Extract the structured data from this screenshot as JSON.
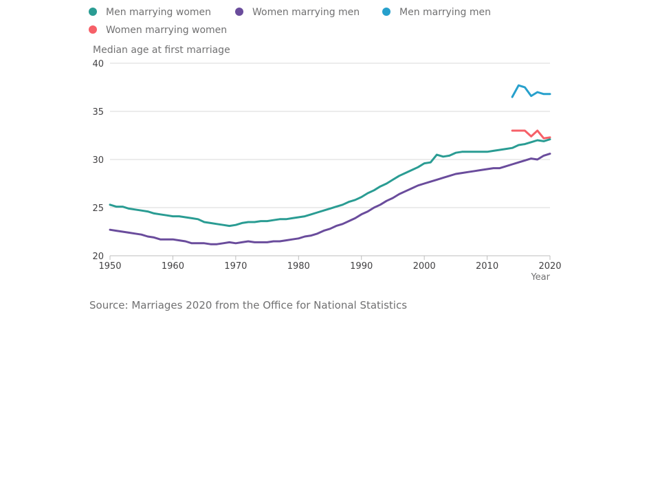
{
  "chart_data": {
    "type": "line",
    "title": "",
    "ylabel": "Median age at first marriage",
    "xlabel": "Year",
    "ylim": [
      20,
      40
    ],
    "xlim": [
      1950,
      2020
    ],
    "yticks": [
      20,
      25,
      30,
      35,
      40
    ],
    "xticks": [
      1950,
      1960,
      1970,
      1980,
      1990,
      2000,
      2010,
      2020
    ],
    "grid": true,
    "legend_position": "top",
    "series": [
      {
        "name": "Men marrying women",
        "color": "#2a9c93",
        "x": [
          1950,
          1951,
          1952,
          1953,
          1954,
          1955,
          1956,
          1957,
          1958,
          1959,
          1960,
          1961,
          1962,
          1963,
          1964,
          1965,
          1966,
          1967,
          1968,
          1969,
          1970,
          1971,
          1972,
          1973,
          1974,
          1975,
          1976,
          1977,
          1978,
          1979,
          1980,
          1981,
          1982,
          1983,
          1984,
          1985,
          1986,
          1987,
          1988,
          1989,
          1990,
          1991,
          1992,
          1993,
          1994,
          1995,
          1996,
          1997,
          1998,
          1999,
          2000,
          2001,
          2002,
          2003,
          2004,
          2005,
          2006,
          2007,
          2008,
          2009,
          2010,
          2011,
          2012,
          2013,
          2014,
          2015,
          2016,
          2017,
          2018,
          2019,
          2020
        ],
        "y": [
          25.3,
          25.1,
          25.1,
          24.9,
          24.8,
          24.7,
          24.6,
          24.4,
          24.3,
          24.2,
          24.1,
          24.1,
          24.0,
          23.9,
          23.8,
          23.5,
          23.4,
          23.3,
          23.2,
          23.1,
          23.2,
          23.4,
          23.5,
          23.5,
          23.6,
          23.6,
          23.7,
          23.8,
          23.8,
          23.9,
          24.0,
          24.1,
          24.3,
          24.5,
          24.7,
          24.9,
          25.1,
          25.3,
          25.6,
          25.8,
          26.1,
          26.5,
          26.8,
          27.2,
          27.5,
          27.9,
          28.3,
          28.6,
          28.9,
          29.2,
          29.6,
          29.7,
          30.5,
          30.3,
          30.4,
          30.7,
          30.8,
          30.8,
          30.8,
          30.8,
          30.8,
          30.9,
          31.0,
          31.1,
          31.2,
          31.5,
          31.6,
          31.8,
          32.0,
          31.9,
          32.1
        ]
      },
      {
        "name": "Women marrying men",
        "color": "#6a4c9c",
        "x": [
          1950,
          1951,
          1952,
          1953,
          1954,
          1955,
          1956,
          1957,
          1958,
          1959,
          1960,
          1961,
          1962,
          1963,
          1964,
          1965,
          1966,
          1967,
          1968,
          1969,
          1970,
          1971,
          1972,
          1973,
          1974,
          1975,
          1976,
          1977,
          1978,
          1979,
          1980,
          1981,
          1982,
          1983,
          1984,
          1985,
          1986,
          1987,
          1988,
          1989,
          1990,
          1991,
          1992,
          1993,
          1994,
          1995,
          1996,
          1997,
          1998,
          1999,
          2000,
          2001,
          2002,
          2003,
          2004,
          2005,
          2006,
          2007,
          2008,
          2009,
          2010,
          2011,
          2012,
          2013,
          2014,
          2015,
          2016,
          2017,
          2018,
          2019,
          2020
        ],
        "y": [
          22.7,
          22.6,
          22.5,
          22.4,
          22.3,
          22.2,
          22.0,
          21.9,
          21.7,
          21.7,
          21.7,
          21.6,
          21.5,
          21.3,
          21.3,
          21.3,
          21.2,
          21.2,
          21.3,
          21.4,
          21.3,
          21.4,
          21.5,
          21.4,
          21.4,
          21.4,
          21.5,
          21.5,
          21.6,
          21.7,
          21.8,
          22.0,
          22.1,
          22.3,
          22.6,
          22.8,
          23.1,
          23.3,
          23.6,
          23.9,
          24.3,
          24.6,
          25.0,
          25.3,
          25.7,
          26.0,
          26.4,
          26.7,
          27.0,
          27.3,
          27.5,
          27.7,
          27.9,
          28.1,
          28.3,
          28.5,
          28.6,
          28.7,
          28.8,
          28.9,
          29.0,
          29.1,
          29.1,
          29.3,
          29.5,
          29.7,
          29.9,
          30.1,
          30.0,
          30.4,
          30.6
        ]
      },
      {
        "name": "Men marrying men",
        "color": "#27a0cc",
        "x": [
          2014,
          2015,
          2016,
          2017,
          2018,
          2019,
          2020
        ],
        "y": [
          36.5,
          37.7,
          37.5,
          36.6,
          37.0,
          36.8,
          36.8
        ]
      },
      {
        "name": "Women marrying women",
        "color": "#f66068",
        "x": [
          2014,
          2015,
          2016,
          2017,
          2018,
          2019,
          2020
        ],
        "y": [
          33.0,
          33.0,
          33.0,
          32.4,
          33.0,
          32.2,
          32.3
        ]
      }
    ]
  },
  "source": "Source: Marriages 2020 from the Office for National Statistics"
}
